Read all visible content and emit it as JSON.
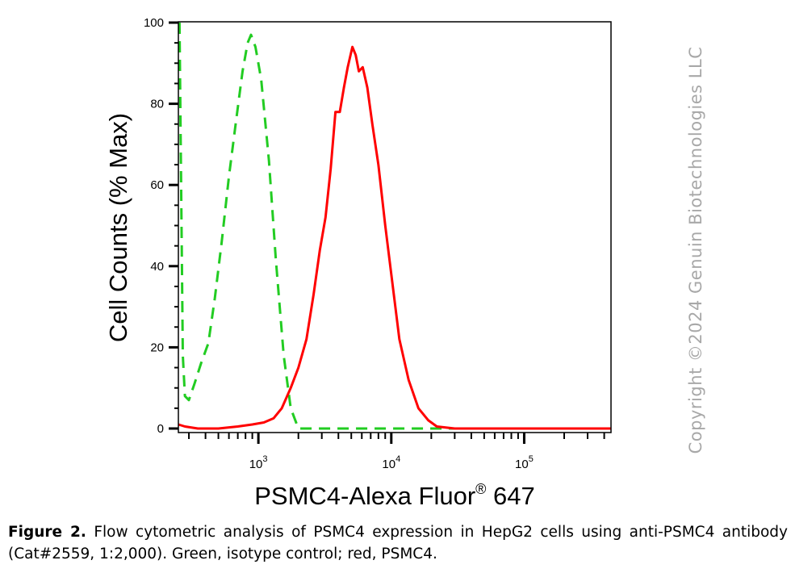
{
  "chart_data": {
    "type": "line",
    "xlabel": "PSMC4-Alexa Fluor",
    "xlabel_sup": "®",
    "xlabel_suffix": " 647",
    "ylabel": "Cell Counts (% Max)",
    "x_scale": "log",
    "xlim": [
      250,
      450000
    ],
    "ylim": [
      0,
      100
    ],
    "y_ticks": [
      0,
      20,
      40,
      60,
      80,
      100
    ],
    "x_ticks": [
      {
        "base": "10",
        "exp": "3",
        "value": 1000
      },
      {
        "base": "10",
        "exp": "4",
        "value": 10000
      },
      {
        "base": "10",
        "exp": "5",
        "value": 100000
      }
    ],
    "grid": false,
    "series": [
      {
        "color": "#22cc22",
        "dash": "dashed",
        "points": [
          [
            255,
            100
          ],
          [
            262,
            60
          ],
          [
            270,
            18
          ],
          [
            280,
            8
          ],
          [
            300,
            7
          ],
          [
            330,
            11
          ],
          [
            370,
            16
          ],
          [
            420,
            21
          ],
          [
            470,
            32
          ],
          [
            530,
            46
          ],
          [
            600,
            62
          ],
          [
            680,
            76
          ],
          [
            760,
            88
          ],
          [
            830,
            95
          ],
          [
            880,
            97
          ],
          [
            950,
            94
          ],
          [
            1050,
            86
          ],
          [
            1200,
            66
          ],
          [
            1350,
            42
          ],
          [
            1550,
            18
          ],
          [
            1750,
            5
          ],
          [
            2000,
            0
          ],
          [
            3000,
            0
          ],
          [
            10000,
            0
          ],
          [
            450000,
            0
          ]
        ]
      },
      {
        "color": "#ff0000",
        "dash": "solid",
        "points": [
          [
            250,
            1
          ],
          [
            280,
            0.5
          ],
          [
            350,
            0
          ],
          [
            500,
            0
          ],
          [
            700,
            0.5
          ],
          [
            900,
            1
          ],
          [
            1100,
            1.5
          ],
          [
            1300,
            2.5
          ],
          [
            1500,
            5
          ],
          [
            1750,
            10
          ],
          [
            2000,
            15
          ],
          [
            2300,
            22
          ],
          [
            2600,
            33
          ],
          [
            2900,
            44
          ],
          [
            3200,
            52
          ],
          [
            3500,
            64
          ],
          [
            3800,
            78
          ],
          [
            4100,
            78
          ],
          [
            4400,
            84
          ],
          [
            4700,
            89
          ],
          [
            5100,
            94
          ],
          [
            5400,
            92
          ],
          [
            5700,
            88
          ],
          [
            6100,
            89
          ],
          [
            6600,
            84
          ],
          [
            7200,
            75
          ],
          [
            8000,
            65
          ],
          [
            9000,
            50
          ],
          [
            10000,
            38
          ],
          [
            11500,
            22
          ],
          [
            13500,
            12
          ],
          [
            16000,
            5
          ],
          [
            19000,
            2
          ],
          [
            22000,
            0.5
          ],
          [
            30000,
            0
          ],
          [
            100000,
            0
          ],
          [
            450000,
            0
          ]
        ]
      }
    ]
  },
  "watermark": "Copyright ©2024 Genuin Biotechnologies LLC",
  "caption": {
    "bold": "Figure 2.",
    "text": " Flow cytometric analysis of PSMC4 expression in HepG2 cells using anti-PSMC4 antibody (Cat#2559, 1:2,000). Green, isotype control; red, PSMC4."
  }
}
